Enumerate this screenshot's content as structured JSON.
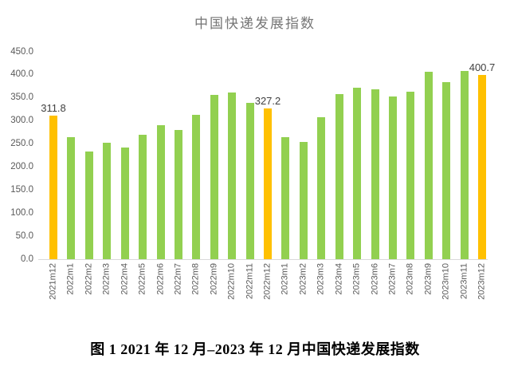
{
  "title": "中国快递发展指数",
  "caption": "图 1 2021 年 12 月–2023 年 12 月中国快递发展指数",
  "colors": {
    "background": "#FFFFFF",
    "bar_default": "#92D050",
    "bar_highlight": "#FFC000",
    "title_text": "#767676",
    "axis_text": "#595959",
    "data_label_text": "#404040",
    "axis_line": "#D9D9D9"
  },
  "chart_data": {
    "type": "bar",
    "title": "中国快递发展指数",
    "xlabel": "",
    "ylabel": "",
    "categories": [
      "2021m12",
      "2022m1",
      "2022m2",
      "2022m3",
      "2022m4",
      "2022m5",
      "2022m6",
      "2022m7",
      "2022m8",
      "2022m9",
      "2022m10",
      "2022m11",
      "2022m12",
      "2023m1",
      "2023m2",
      "2023m3",
      "2023m4",
      "2023m5",
      "2023m6",
      "2023m7",
      "2023m8",
      "2023m9",
      "2023m10",
      "2023m11",
      "2023m12"
    ],
    "values": [
      311.8,
      264,
      233,
      252,
      243,
      270,
      291,
      280,
      313,
      357,
      361,
      339,
      327.2,
      265,
      255,
      308,
      358,
      373,
      369,
      353,
      363,
      406,
      384,
      409,
      400.7
    ],
    "highlight_indices": [
      0,
      12,
      24
    ],
    "data_labels": [
      {
        "index": 0,
        "text": "311.8"
      },
      {
        "index": 12,
        "text": "327.2"
      },
      {
        "index": 24,
        "text": "400.7"
      }
    ],
    "ylim": [
      0,
      450
    ],
    "ytick_step": 50,
    "yticks": [
      "0.0",
      "50.0",
      "100.0",
      "150.0",
      "200.0",
      "250.0",
      "300.0",
      "350.0",
      "400.0",
      "450.0"
    ],
    "grid": "none",
    "legend": "none"
  }
}
